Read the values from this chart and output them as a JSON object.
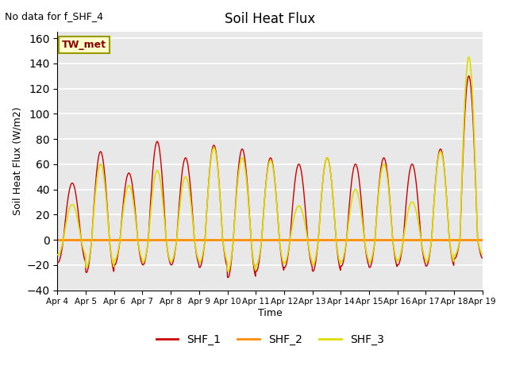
{
  "title": "Soil Heat Flux",
  "ylabel": "Soil Heat Flux (W/m2)",
  "xlabel": "Time",
  "subtitle": "No data for f_SHF_4",
  "legend_label": "TW_met",
  "ylim": [
    -40,
    165
  ],
  "yticks": [
    -40,
    -20,
    0,
    20,
    40,
    60,
    80,
    100,
    120,
    140,
    160
  ],
  "shf1_color": "#cc0000",
  "shf2_color": "#ff8c00",
  "shf3_color": "#dddd00",
  "zero_line_color": "#ff8c00",
  "bg_color": "#e8e8e8",
  "legend_entries": [
    "SHF_1",
    "SHF_2",
    "SHF_3"
  ],
  "legend_colors": [
    "#cc0000",
    "#ff8c00",
    "#dddd00"
  ],
  "day_peaks_shf1": [
    45,
    70,
    53,
    78,
    65,
    75,
    72,
    65,
    60,
    65,
    60,
    65,
    60,
    72,
    130
  ],
  "day_peaks_shf3": [
    28,
    60,
    43,
    55,
    50,
    73,
    65,
    63,
    27,
    65,
    40,
    60,
    30,
    70,
    145
  ],
  "day_mins_shf1": [
    -18,
    -26,
    -20,
    -20,
    -20,
    -22,
    -30,
    -25,
    -22,
    -25,
    -21,
    -22,
    -20,
    -21,
    -15
  ],
  "day_mins_shf3": [
    -12,
    -22,
    -16,
    -18,
    -17,
    -18,
    -25,
    -20,
    -18,
    -20,
    -17,
    -18,
    -16,
    -18,
    -12
  ]
}
